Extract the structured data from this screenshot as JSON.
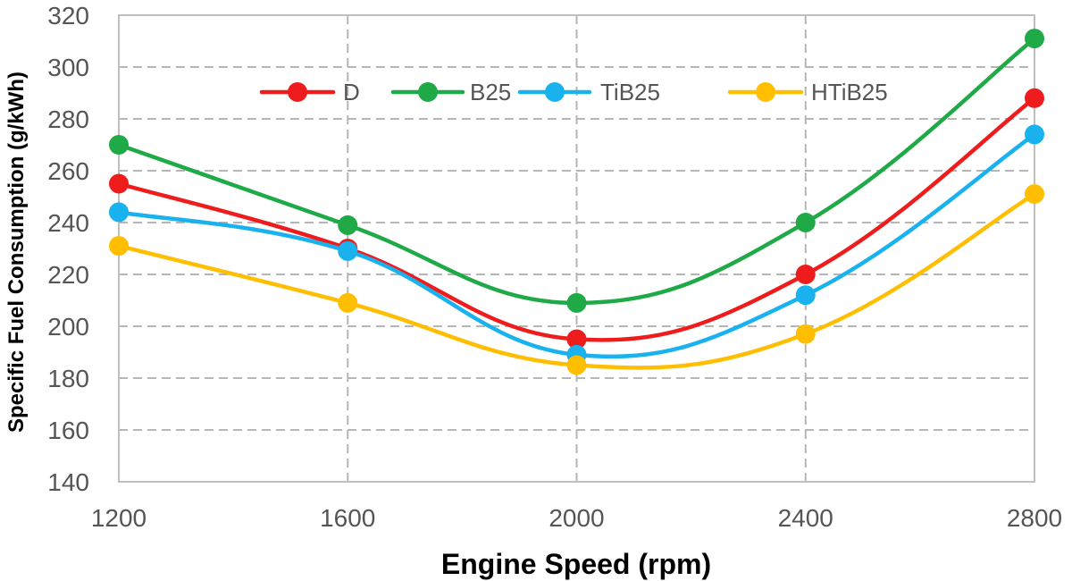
{
  "chart_data": {
    "type": "line",
    "title": "",
    "xlabel": "Engine Speed (rpm)",
    "ylabel": "Specific  Fuel Consumption  (g/kWh)",
    "x": [
      1200,
      1600,
      2000,
      2400,
      2800
    ],
    "x_tick_labels": [
      "1200",
      "1600",
      "2000",
      "2400",
      "2800"
    ],
    "xlim": [
      1200,
      2800
    ],
    "ylim": [
      140,
      320
    ],
    "y_ticks": [
      140,
      160,
      180,
      200,
      220,
      240,
      260,
      280,
      300,
      320
    ],
    "y_tick_labels": [
      "140",
      "160",
      "180",
      "200",
      "220",
      "240",
      "260",
      "280",
      "300",
      "320"
    ],
    "grid": true,
    "grid_style": "dashed",
    "legend_position": "top-center",
    "smooth": true,
    "series": [
      {
        "name": "D",
        "color": "#ee1c1c",
        "values": [
          255,
          230,
          195,
          220,
          288
        ]
      },
      {
        "name": "B25",
        "color": "#1faa47",
        "values": [
          270,
          239,
          209,
          240,
          311
        ]
      },
      {
        "name": "TiB25",
        "color": "#19b2ee",
        "values": [
          244,
          229,
          189,
          212,
          274
        ]
      },
      {
        "name": "HTiB25",
        "color": "#ffbf00",
        "values": [
          231,
          209,
          185,
          197,
          251
        ]
      }
    ]
  }
}
